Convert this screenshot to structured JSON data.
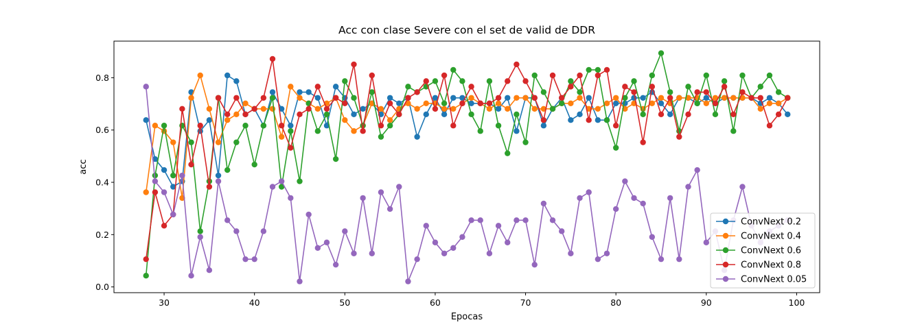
{
  "chart_data": {
    "type": "line",
    "title": "Acc con clase Severe con el set de valid de DDR",
    "xlabel": "Epocas",
    "ylabel": "acc",
    "xlim": [
      24.45,
      102.55
    ],
    "ylim": [
      -0.022,
      0.94
    ],
    "x_ticks": [
      30,
      40,
      50,
      60,
      70,
      80,
      90,
      100
    ],
    "y_ticks": [
      0.0,
      0.2,
      0.4,
      0.6,
      0.8
    ],
    "grid": false,
    "legend_position": "lower-right",
    "x": [
      28,
      29,
      30,
      31,
      32,
      33,
      34,
      35,
      36,
      37,
      38,
      39,
      40,
      41,
      42,
      43,
      44,
      45,
      46,
      47,
      48,
      49,
      50,
      51,
      52,
      53,
      54,
      55,
      56,
      57,
      58,
      59,
      60,
      61,
      62,
      63,
      64,
      65,
      66,
      67,
      68,
      69,
      70,
      71,
      72,
      73,
      74,
      75,
      76,
      77,
      78,
      79,
      80,
      81,
      82,
      83,
      84,
      85,
      86,
      87,
      88,
      89,
      90,
      91,
      92,
      93,
      94,
      95,
      96,
      97,
      98,
      99
    ],
    "series": [
      {
        "name": "ConvNext 0.2",
        "color": "#1f77b4",
        "values": [
          0.638,
          0.489,
          0.447,
          0.383,
          0.404,
          0.745,
          0.596,
          0.638,
          0.426,
          0.809,
          0.787,
          0.66,
          0.681,
          0.617,
          0.745,
          0.681,
          0.617,
          0.745,
          0.745,
          0.723,
          0.617,
          0.766,
          0.723,
          0.66,
          0.681,
          0.702,
          0.66,
          0.723,
          0.702,
          0.723,
          0.574,
          0.66,
          0.723,
          0.66,
          0.723,
          0.723,
          0.702,
          0.702,
          0.702,
          0.681,
          0.723,
          0.596,
          0.723,
          0.723,
          0.617,
          0.681,
          0.723,
          0.638,
          0.66,
          0.723,
          0.638,
          0.638,
          0.702,
          0.702,
          0.723,
          0.723,
          0.745,
          0.702,
          0.66,
          0.723,
          0.723,
          0.702,
          0.723,
          0.702,
          0.723,
          0.723,
          0.723,
          0.723,
          0.702,
          0.723,
          0.702,
          0.66
        ]
      },
      {
        "name": "ConvNext 0.4",
        "color": "#ff7f0e",
        "values": [
          0.362,
          0.617,
          0.596,
          0.553,
          0.34,
          0.723,
          0.809,
          0.681,
          0.553,
          0.638,
          0.66,
          0.702,
          0.681,
          0.681,
          0.681,
          0.574,
          0.766,
          0.723,
          0.702,
          0.681,
          0.702,
          0.723,
          0.638,
          0.596,
          0.617,
          0.702,
          0.681,
          0.638,
          0.681,
          0.702,
          0.681,
          0.702,
          0.702,
          0.681,
          0.681,
          0.702,
          0.723,
          0.702,
          0.681,
          0.702,
          0.681,
          0.723,
          0.723,
          0.681,
          0.681,
          0.681,
          0.702,
          0.702,
          0.723,
          0.681,
          0.681,
          0.702,
          0.723,
          0.681,
          0.702,
          0.681,
          0.702,
          0.723,
          0.702,
          0.723,
          0.723,
          0.723,
          0.702,
          0.723,
          0.723,
          0.723,
          0.723,
          0.723,
          0.681,
          0.702,
          0.702,
          0.723
        ]
      },
      {
        "name": "ConvNext 0.6",
        "color": "#2ca02c",
        "values": [
          0.043,
          0.426,
          0.617,
          0.426,
          0.617,
          0.553,
          0.213,
          0.404,
          0.723,
          0.447,
          0.553,
          0.617,
          0.468,
          0.617,
          0.723,
          0.383,
          0.596,
          0.404,
          0.702,
          0.596,
          0.66,
          0.489,
          0.787,
          0.723,
          0.617,
          0.745,
          0.574,
          0.617,
          0.66,
          0.766,
          0.745,
          0.766,
          0.787,
          0.702,
          0.83,
          0.787,
          0.66,
          0.596,
          0.787,
          0.617,
          0.511,
          0.66,
          0.553,
          0.809,
          0.745,
          0.681,
          0.702,
          0.787,
          0.745,
          0.83,
          0.83,
          0.638,
          0.532,
          0.723,
          0.787,
          0.66,
          0.809,
          0.894,
          0.745,
          0.596,
          0.766,
          0.702,
          0.809,
          0.66,
          0.787,
          0.596,
          0.809,
          0.723,
          0.766,
          0.809,
          0.745,
          0.723
        ]
      },
      {
        "name": "ConvNext 0.8",
        "color": "#d62728",
        "values": [
          0.106,
          0.362,
          0.234,
          0.277,
          0.681,
          0.468,
          0.617,
          0.383,
          0.723,
          0.66,
          0.723,
          0.66,
          0.681,
          0.723,
          0.872,
          0.617,
          0.532,
          0.66,
          0.681,
          0.766,
          0.681,
          0.723,
          0.702,
          0.851,
          0.596,
          0.809,
          0.617,
          0.702,
          0.66,
          0.723,
          0.745,
          0.787,
          0.681,
          0.809,
          0.617,
          0.702,
          0.766,
          0.702,
          0.702,
          0.723,
          0.787,
          0.851,
          0.787,
          0.723,
          0.638,
          0.809,
          0.723,
          0.766,
          0.809,
          0.638,
          0.809,
          0.83,
          0.617,
          0.766,
          0.745,
          0.553,
          0.766,
          0.66,
          0.723,
          0.574,
          0.66,
          0.745,
          0.745,
          0.702,
          0.766,
          0.66,
          0.745,
          0.723,
          0.723,
          0.617,
          0.66,
          0.723
        ]
      },
      {
        "name": "ConvNext 0.05",
        "color": "#9467bd",
        "values": [
          0.766,
          0.404,
          0.362,
          0.277,
          0.426,
          0.043,
          0.191,
          0.064,
          0.404,
          0.255,
          0.213,
          0.106,
          0.106,
          0.213,
          0.383,
          0.404,
          0.34,
          0.021,
          0.277,
          0.149,
          0.17,
          0.085,
          0.213,
          0.128,
          0.34,
          0.128,
          0.362,
          0.298,
          0.383,
          0.021,
          0.106,
          0.234,
          0.17,
          0.128,
          0.149,
          0.191,
          0.255,
          0.255,
          0.128,
          0.234,
          0.17,
          0.255,
          0.255,
          0.085,
          0.319,
          0.255,
          0.213,
          0.128,
          0.34,
          0.362,
          0.106,
          0.128,
          0.298,
          0.404,
          0.34,
          0.319,
          0.191,
          0.106,
          0.34,
          0.106,
          0.383,
          0.447,
          0.17,
          0.213,
          0.064,
          0.255,
          0.383,
          0.234,
          0.17,
          0.213,
          0.234,
          0.255
        ]
      }
    ]
  }
}
